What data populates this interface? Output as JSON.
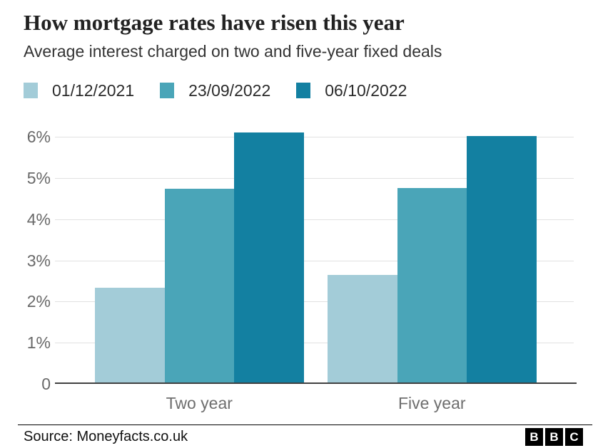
{
  "header": {
    "title": "How mortgage rates have risen this year",
    "subtitle": "Average interest charged on two and five-year fixed deals"
  },
  "legend": [
    {
      "label": "01/12/2021",
      "color": "#a3ccd8"
    },
    {
      "label": "23/09/2022",
      "color": "#4aa5b8"
    },
    {
      "label": "06/10/2022",
      "color": "#1380a1"
    }
  ],
  "chart_data": {
    "type": "bar",
    "title": "How mortgage rates have risen this year",
    "subtitle": "Average interest charged on two and five-year fixed deals",
    "categories": [
      "Two year",
      "Five year"
    ],
    "series": [
      {
        "name": "01/12/2021",
        "color": "#a3ccd8",
        "values": [
          2.34,
          2.64
        ]
      },
      {
        "name": "23/09/2022",
        "color": "#4aa5b8",
        "values": [
          4.74,
          4.75
        ]
      },
      {
        "name": "06/10/2022",
        "color": "#1380a1",
        "values": [
          6.11,
          6.02
        ]
      }
    ],
    "unit": "%",
    "xlabel": "",
    "ylabel": "",
    "ylim": [
      0,
      6.2
    ],
    "yticks": [
      {
        "value": 6,
        "label": "6%"
      },
      {
        "value": 5,
        "label": "5%"
      },
      {
        "value": 4,
        "label": "4%"
      },
      {
        "value": 3,
        "label": "3%"
      },
      {
        "value": 2,
        "label": "2%"
      },
      {
        "value": 1,
        "label": "1%"
      },
      {
        "value": 0,
        "label": "0"
      }
    ],
    "grid": "horizontal",
    "legend_position": "top"
  },
  "footer": {
    "source": "Source: Moneyfacts.co.uk",
    "logo": [
      "B",
      "B",
      "C"
    ]
  },
  "colors": {
    "gridline": "#e1e1e1",
    "axis_line": "#404040",
    "tick_text": "#696969",
    "category_text": "#6e6e6e"
  }
}
